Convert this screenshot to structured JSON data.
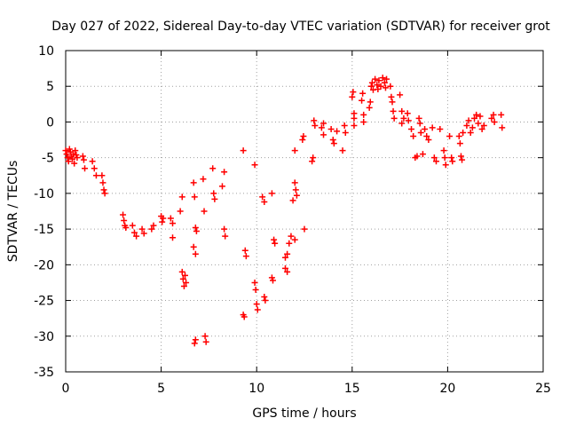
{
  "chart_data": {
    "type": "scatter",
    "title": "Day 027 of 2022, Sidereal Day-to-day VTEC variation (SDTVAR) for receiver grot",
    "xlabel": "GPS time / hours",
    "ylabel": "SDTVAR / TECUs",
    "xlim": [
      0,
      25
    ],
    "ylim": [
      -35,
      10
    ],
    "xticks": [
      "0",
      "5",
      "10",
      "15",
      "20",
      "25"
    ],
    "yticks": [
      "10",
      "5",
      "0",
      "-5",
      "-10",
      "-15",
      "-20",
      "-25",
      "-30",
      "-35"
    ],
    "grid": true,
    "marker": "+",
    "series_color": "#ff0000",
    "series": [
      {
        "name": "SDTVAR",
        "points": [
          [
            0.0,
            -4.0
          ],
          [
            0.05,
            -4.5
          ],
          [
            0.1,
            -5.0
          ],
          [
            0.15,
            -5.5
          ],
          [
            0.2,
            -3.8
          ],
          [
            0.25,
            -4.2
          ],
          [
            0.3,
            -4.8
          ],
          [
            0.35,
            -5.2
          ],
          [
            0.4,
            -4.5
          ],
          [
            0.45,
            -5.8
          ],
          [
            0.5,
            -4.0
          ],
          [
            0.55,
            -4.6
          ],
          [
            0.6,
            -5.0
          ],
          [
            0.9,
            -4.8
          ],
          [
            0.95,
            -5.3
          ],
          [
            1.0,
            -6.5
          ],
          [
            1.4,
            -5.5
          ],
          [
            1.5,
            -6.5
          ],
          [
            1.6,
            -7.5
          ],
          [
            1.9,
            -7.5
          ],
          [
            1.95,
            -8.5
          ],
          [
            2.0,
            -9.5
          ],
          [
            2.05,
            -10.0
          ],
          [
            3.0,
            -13.0
          ],
          [
            3.05,
            -13.8
          ],
          [
            3.1,
            -14.5
          ],
          [
            3.15,
            -14.8
          ],
          [
            3.5,
            -14.5
          ],
          [
            3.6,
            -15.5
          ],
          [
            3.7,
            -16.0
          ],
          [
            4.0,
            -15.0
          ],
          [
            4.1,
            -15.6
          ],
          [
            4.5,
            -15.0
          ],
          [
            4.6,
            -14.5
          ],
          [
            5.0,
            -13.2
          ],
          [
            5.05,
            -14.0
          ],
          [
            5.1,
            -13.5
          ],
          [
            5.5,
            -13.5
          ],
          [
            5.6,
            -14.2
          ],
          [
            5.6,
            -16.2
          ],
          [
            6.0,
            -12.5
          ],
          [
            6.1,
            -10.5
          ],
          [
            6.1,
            -21.0
          ],
          [
            6.15,
            -22.0
          ],
          [
            6.2,
            -23.0
          ],
          [
            6.25,
            -21.5
          ],
          [
            6.3,
            -22.5
          ],
          [
            6.7,
            -8.5
          ],
          [
            6.75,
            -10.5
          ],
          [
            6.8,
            -14.8
          ],
          [
            6.85,
            -15.3
          ],
          [
            6.7,
            -17.5
          ],
          [
            6.8,
            -18.5
          ],
          [
            6.75,
            -31.0
          ],
          [
            6.8,
            -30.5
          ],
          [
            7.2,
            -8.0
          ],
          [
            7.25,
            -12.5
          ],
          [
            7.3,
            -30.0
          ],
          [
            7.35,
            -30.8
          ],
          [
            7.7,
            -6.5
          ],
          [
            7.75,
            -10.0
          ],
          [
            7.8,
            -10.8
          ],
          [
            8.2,
            -9.0
          ],
          [
            8.3,
            -7.0
          ],
          [
            8.3,
            -15.0
          ],
          [
            8.35,
            -16.0
          ],
          [
            9.3,
            -4.0
          ],
          [
            9.4,
            -18.0
          ],
          [
            9.45,
            -18.8
          ],
          [
            9.3,
            -27.0
          ],
          [
            9.35,
            -27.3
          ],
          [
            9.9,
            -6.0
          ],
          [
            9.9,
            -22.5
          ],
          [
            9.95,
            -23.5
          ],
          [
            10.0,
            -25.5
          ],
          [
            10.05,
            -26.3
          ],
          [
            10.3,
            -10.5
          ],
          [
            10.4,
            -11.2
          ],
          [
            10.4,
            -24.5
          ],
          [
            10.45,
            -25.0
          ],
          [
            10.8,
            -10.0
          ],
          [
            10.9,
            -16.5
          ],
          [
            10.95,
            -17.0
          ],
          [
            10.8,
            -21.8
          ],
          [
            10.85,
            -22.2
          ],
          [
            11.5,
            -19.0
          ],
          [
            11.5,
            -20.5
          ],
          [
            11.6,
            -18.5
          ],
          [
            11.7,
            -17.0
          ],
          [
            11.8,
            -16.0
          ],
          [
            11.6,
            -21.0
          ],
          [
            11.9,
            -11.0
          ],
          [
            12.0,
            -8.5
          ],
          [
            12.05,
            -9.5
          ],
          [
            12.1,
            -10.3
          ],
          [
            12.0,
            -16.5
          ],
          [
            12.0,
            -4.0
          ],
          [
            12.4,
            -2.5
          ],
          [
            12.45,
            -2.0
          ],
          [
            12.5,
            -15.0
          ],
          [
            12.9,
            -5.5
          ],
          [
            12.95,
            -5.0
          ],
          [
            13.0,
            0.2
          ],
          [
            13.05,
            -0.5
          ],
          [
            13.4,
            -0.8
          ],
          [
            13.5,
            -1.8
          ],
          [
            13.5,
            -0.2
          ],
          [
            13.9,
            -1.0
          ],
          [
            14.0,
            -2.5
          ],
          [
            14.05,
            -3.0
          ],
          [
            14.2,
            -1.3
          ],
          [
            14.5,
            -4.0
          ],
          [
            14.6,
            -0.5
          ],
          [
            14.65,
            -1.5
          ],
          [
            15.0,
            3.5
          ],
          [
            15.05,
            4.2
          ],
          [
            15.1,
            1.2
          ],
          [
            15.1,
            0.5
          ],
          [
            15.1,
            -0.5
          ],
          [
            15.5,
            3.0
          ],
          [
            15.55,
            4.0
          ],
          [
            15.6,
            1.0
          ],
          [
            15.6,
            0.0
          ],
          [
            15.9,
            2.0
          ],
          [
            15.95,
            2.8
          ],
          [
            16.0,
            5.0
          ],
          [
            16.05,
            5.5
          ],
          [
            16.1,
            4.5
          ],
          [
            16.2,
            6.0
          ],
          [
            16.3,
            5.2
          ],
          [
            16.35,
            4.6
          ],
          [
            16.4,
            5.8
          ],
          [
            16.5,
            5.0
          ],
          [
            16.6,
            6.2
          ],
          [
            16.7,
            5.5
          ],
          [
            16.75,
            4.8
          ],
          [
            16.8,
            6.0
          ],
          [
            17.0,
            5.0
          ],
          [
            17.05,
            3.5
          ],
          [
            17.1,
            2.8
          ],
          [
            17.15,
            1.5
          ],
          [
            17.2,
            0.5
          ],
          [
            17.5,
            3.8
          ],
          [
            17.6,
            1.5
          ],
          [
            17.7,
            0.5
          ],
          [
            17.6,
            -0.2
          ],
          [
            17.9,
            1.2
          ],
          [
            17.95,
            0.2
          ],
          [
            18.1,
            -1.0
          ],
          [
            18.2,
            -2.0
          ],
          [
            18.3,
            -5.0
          ],
          [
            18.4,
            -4.8
          ],
          [
            18.5,
            0.5
          ],
          [
            18.55,
            -0.2
          ],
          [
            18.6,
            -1.5
          ],
          [
            18.7,
            -4.5
          ],
          [
            18.8,
            -1.0
          ],
          [
            18.9,
            -2.0
          ],
          [
            19.0,
            -2.5
          ],
          [
            19.2,
            -0.8
          ],
          [
            19.3,
            -5.0
          ],
          [
            19.4,
            -5.5
          ],
          [
            19.6,
            -1.0
          ],
          [
            19.8,
            -4.0
          ],
          [
            19.85,
            -5.0
          ],
          [
            19.9,
            -6.0
          ],
          [
            20.1,
            -2.0
          ],
          [
            20.2,
            -5.0
          ],
          [
            20.25,
            -5.5
          ],
          [
            20.6,
            -2.0
          ],
          [
            20.65,
            -3.0
          ],
          [
            20.7,
            -4.8
          ],
          [
            20.75,
            -5.3
          ],
          [
            20.8,
            -1.5
          ],
          [
            21.0,
            -0.5
          ],
          [
            21.1,
            0.2
          ],
          [
            21.2,
            -1.5
          ],
          [
            21.3,
            -0.8
          ],
          [
            21.4,
            0.5
          ],
          [
            21.5,
            1.0
          ],
          [
            21.6,
            -0.2
          ],
          [
            21.7,
            0.8
          ],
          [
            21.8,
            -1.0
          ],
          [
            21.9,
            -0.5
          ],
          [
            22.3,
            0.5
          ],
          [
            22.4,
            1.0
          ],
          [
            22.45,
            0.0
          ],
          [
            22.8,
            1.0
          ],
          [
            22.85,
            -0.8
          ]
        ]
      }
    ]
  }
}
